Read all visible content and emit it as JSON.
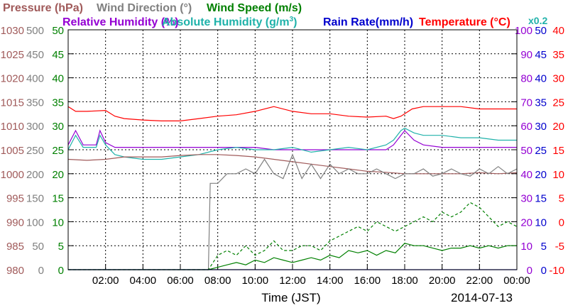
{
  "chart_data": {
    "type": "line",
    "header_line1": [
      {
        "text": "Pressure (hPa)",
        "color": "#a05a5a"
      },
      {
        "text": "Wind Direction (°)",
        "color": "#808080"
      },
      {
        "text": "Wind Speed (m/s)",
        "color": "#008000"
      }
    ],
    "header_line2": [
      {
        "text": "Relative Humidity (%)",
        "color": "#9400d3"
      },
      {
        "text": "Absolute Humidity (g/m",
        "sup": "3",
        "tail": ")",
        "color": "#20b2aa"
      },
      {
        "text": "Rain Rate(mm/h)",
        "color": "#0000cd"
      },
      {
        "text": "Temperature (°C)",
        "color": "#ff0000"
      }
    ],
    "x0_2_label": "x0.2",
    "xlabel": "Time (JST)",
    "date_label": "2014-07-13",
    "x_ticks": [
      "02:00",
      "04:00",
      "06:00",
      "08:00",
      "10:00",
      "12:00",
      "14:00",
      "16:00",
      "18:00",
      "20:00",
      "22:00",
      "00:00"
    ],
    "x_range_hours": [
      0,
      24
    ],
    "left_axes": [
      {
        "name": "pressure",
        "color": "#a05a5a",
        "ticks": [
          "1030",
          "1025",
          "1020",
          "1015",
          "1010",
          "1005",
          "1000",
          "995",
          "990",
          "985",
          "980"
        ]
      },
      {
        "name": "wind_direction",
        "color": "#808080",
        "ticks": [
          "500",
          "450",
          "400",
          "350",
          "300",
          "250",
          "200",
          "150",
          "100",
          "50",
          "0"
        ]
      },
      {
        "name": "wind_speed",
        "color": "#008000",
        "ticks": [
          "50",
          "45",
          "40",
          "35",
          "30",
          "25",
          "20",
          "15",
          "10",
          "5",
          "0"
        ]
      }
    ],
    "right_axes": [
      {
        "name": "humidity",
        "color": "#9400d3",
        "ticks": [
          "100",
          "90",
          "80",
          "70",
          "60",
          "50",
          "40",
          "30",
          "20",
          "10",
          "0"
        ]
      },
      {
        "name": "rain_rate",
        "color": "#0000cd",
        "ticks": [
          "50",
          "45",
          "40",
          "35",
          "30",
          "25",
          "20",
          "15",
          "10",
          "5",
          "0"
        ]
      },
      {
        "name": "temperature",
        "color": "#ff0000",
        "ticks": [
          "40",
          "35",
          "30",
          "25",
          "20",
          "15",
          "10",
          "5",
          "0",
          "-5",
          "-10"
        ]
      }
    ],
    "series": [
      {
        "name": "Temperature",
        "color": "#ff0000",
        "axis": "temperature",
        "x": [
          0,
          0.4,
          1,
          2,
          2.5,
          3,
          4,
          5,
          6,
          7,
          8,
          9,
          10,
          11,
          12,
          13,
          14,
          15,
          16,
          17,
          17.4,
          17.8,
          18.4,
          19,
          20,
          21,
          22,
          23,
          24
        ],
        "y": [
          24,
          23,
          23,
          23.2,
          22,
          21.5,
          21.2,
          21,
          21,
          21.5,
          22,
          22.3,
          23,
          24,
          23,
          22.5,
          22.5,
          22,
          21.8,
          22,
          21.5,
          22,
          23.5,
          24,
          24,
          24,
          23.5,
          23.5,
          23.5
        ]
      },
      {
        "name": "Relative Humidity",
        "color": "#9400d3",
        "axis": "humidity",
        "x": [
          0,
          0.4,
          0.8,
          1.5,
          1.7,
          2,
          2.5,
          3,
          4,
          5,
          6,
          7,
          8,
          9,
          10,
          11,
          12,
          13,
          14,
          15,
          16,
          17,
          17.4,
          17.8,
          18,
          18.5,
          19,
          20,
          21,
          22,
          23,
          24
        ],
        "y": [
          52,
          58,
          52,
          52,
          58,
          53,
          51,
          51,
          51,
          51,
          51,
          51,
          51,
          51,
          51,
          50,
          50,
          50,
          50,
          50,
          50,
          50,
          52,
          56,
          58,
          54,
          52,
          51,
          51,
          51,
          51,
          51
        ]
      },
      {
        "name": "Absolute Humidity (x0.2)",
        "color": "#20b2aa",
        "axis": "humidity",
        "x": [
          0,
          0.4,
          0.8,
          1.5,
          1.7,
          2,
          2.5,
          3,
          4,
          5,
          6,
          7,
          8,
          9,
          10,
          11,
          12,
          13,
          14,
          15,
          16,
          17,
          17.4,
          17.8,
          18,
          18.5,
          19,
          20,
          21,
          22,
          23,
          24
        ],
        "y": [
          50,
          56,
          51,
          51,
          56,
          52,
          48,
          47,
          46,
          46,
          47,
          48,
          50,
          51,
          50,
          50,
          51,
          49,
          50,
          51,
          50,
          52,
          54,
          58,
          59,
          57,
          56,
          56,
          55,
          55,
          54,
          54
        ]
      },
      {
        "name": "Pressure",
        "color": "#a05a5a",
        "axis": "pressure",
        "x": [
          0,
          1,
          2,
          3,
          4,
          5,
          6,
          7,
          8,
          9,
          10,
          11,
          12,
          13,
          14,
          15,
          16,
          17,
          18,
          19,
          20,
          21,
          22,
          23,
          24
        ],
        "y": [
          1003,
          1002.8,
          1003,
          1003.5,
          1003.5,
          1003.5,
          1003.8,
          1004,
          1004,
          1003.8,
          1003.5,
          1003,
          1002.5,
          1002,
          1001.5,
          1001,
          1000.5,
          1000.3,
          1000,
          1000,
          1000,
          1000,
          1000.2,
          1000,
          1000.2
        ]
      },
      {
        "name": "Wind Direction",
        "color": "#808080",
        "axis": "wind_direction",
        "x": [
          0,
          7,
          7.5,
          7.6,
          8,
          8.5,
          9,
          9.5,
          10,
          10.5,
          11,
          11.5,
          12,
          12.5,
          13,
          13.5,
          14,
          14.5,
          15,
          15.5,
          16,
          16.5,
          17,
          17.5,
          18,
          18.5,
          19,
          19.5,
          20,
          20.5,
          21,
          21.5,
          22,
          22.5,
          23,
          23.5,
          24
        ],
        "y": [
          0,
          0,
          0,
          180,
          180,
          200,
          200,
          210,
          200,
          230,
          200,
          190,
          240,
          190,
          220,
          190,
          220,
          200,
          210,
          200,
          200,
          210,
          200,
          190,
          200,
          200,
          210,
          195,
          200,
          210,
          200,
          195,
          210,
          200,
          215,
          200,
          210
        ]
      },
      {
        "name": "Wind Speed (mean)",
        "color": "#008000",
        "axis": "wind_speed",
        "x": [
          0,
          7,
          7.5,
          8,
          8.5,
          9,
          9.5,
          10,
          10.5,
          11,
          11.5,
          12,
          12.5,
          13,
          13.5,
          14,
          14.5,
          15,
          15.5,
          16,
          16.5,
          17,
          17.5,
          18,
          18.5,
          19,
          19.5,
          20,
          20.5,
          21,
          21.5,
          22,
          22.5,
          23,
          23.5,
          24
        ],
        "y": [
          0,
          0,
          0,
          0.5,
          1,
          1.5,
          1,
          2,
          1.5,
          2.5,
          2,
          1.5,
          2,
          2.5,
          2,
          3,
          2.5,
          4,
          3.5,
          4,
          3,
          4,
          3.5,
          5.5,
          5,
          5,
          4.5,
          4,
          4.5,
          4.5,
          5,
          4.5,
          5,
          4.5,
          5,
          5
        ]
      },
      {
        "name": "Wind Speed (gust)",
        "color": "#008000",
        "axis": "wind_speed",
        "dashed": true,
        "x": [
          0,
          7,
          7.5,
          8,
          8.5,
          9,
          9.5,
          10,
          10.5,
          11,
          11.5,
          12,
          12.5,
          13,
          13.5,
          14,
          14.5,
          15,
          15.5,
          16,
          16.5,
          17,
          17.5,
          18,
          18.5,
          19,
          19.5,
          20,
          20.5,
          21,
          21.5,
          22,
          22.5,
          23,
          23.5,
          24
        ],
        "y": [
          0,
          0,
          0,
          3,
          4,
          3,
          5,
          3,
          4,
          6,
          4,
          4,
          5,
          5,
          4,
          6,
          7,
          8,
          9,
          8,
          10,
          9,
          8,
          9,
          10,
          11,
          10,
          12,
          11,
          12,
          14,
          13,
          11,
          9,
          10,
          9
        ]
      },
      {
        "name": "Rain Rate",
        "color": "#0000cd",
        "axis": "rain_rate",
        "x": [
          0,
          24
        ],
        "y": [
          0,
          0
        ]
      }
    ],
    "grid": true
  }
}
